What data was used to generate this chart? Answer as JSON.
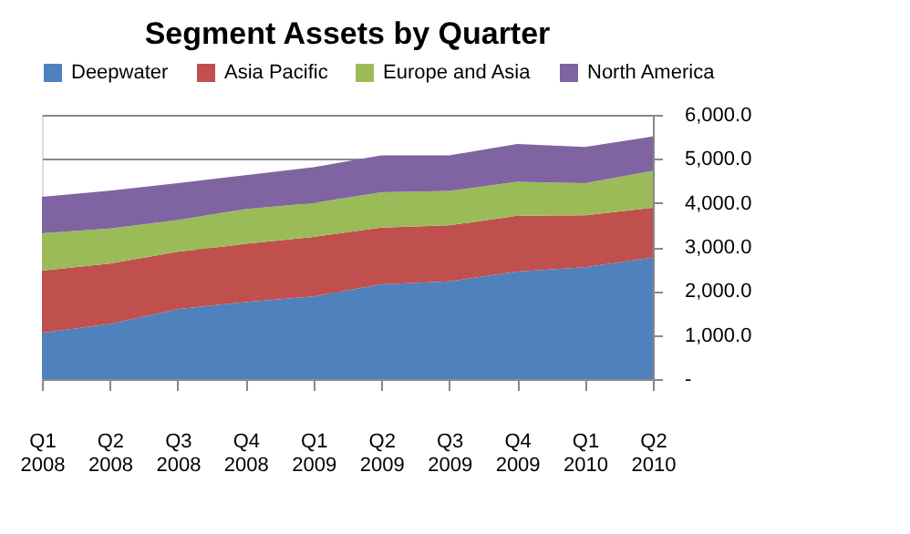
{
  "chart_data": {
    "type": "area",
    "title": "Segment Assets by Quarter",
    "stacked": true,
    "legend": "top",
    "grid": "y",
    "categories": [
      "Q1 2008",
      "Q2 2008",
      "Q3 2008",
      "Q4 2008",
      "Q1 2009",
      "Q2 2009",
      "Q3 2009",
      "Q4 2009",
      "Q1 2010",
      "Q2 2010"
    ],
    "ylim": [
      0,
      6000
    ],
    "yticks": [
      {
        "value": 0,
        "label": "-"
      },
      {
        "value": 1000,
        "label": "1,000.0"
      },
      {
        "value": 2000,
        "label": "2,000.0"
      },
      {
        "value": 3000,
        "label": "3,000.0"
      },
      {
        "value": 4000,
        "label": "4,000.0"
      },
      {
        "value": 5000,
        "label": "5,000.0"
      },
      {
        "value": 6000,
        "label": "6,000.0"
      }
    ],
    "series": [
      {
        "name": "Deepwater",
        "color": "#4f81bd",
        "values": [
          1050,
          1250,
          1590,
          1750,
          1880,
          2150,
          2220,
          2440,
          2540,
          2760
        ]
      },
      {
        "name": "Asia Pacific",
        "color": "#c0504d",
        "values": [
          1410,
          1370,
          1300,
          1320,
          1350,
          1290,
          1270,
          1270,
          1180,
          1130
        ]
      },
      {
        "name": "Europe and Asia",
        "color": "#9bbb59",
        "values": [
          850,
          800,
          720,
          790,
          770,
          800,
          780,
          770,
          730,
          840
        ]
      },
      {
        "name": "North America",
        "color": "#8064a2",
        "values": [
          830,
          860,
          840,
          770,
          810,
          840,
          810,
          860,
          820,
          780
        ]
      }
    ]
  }
}
